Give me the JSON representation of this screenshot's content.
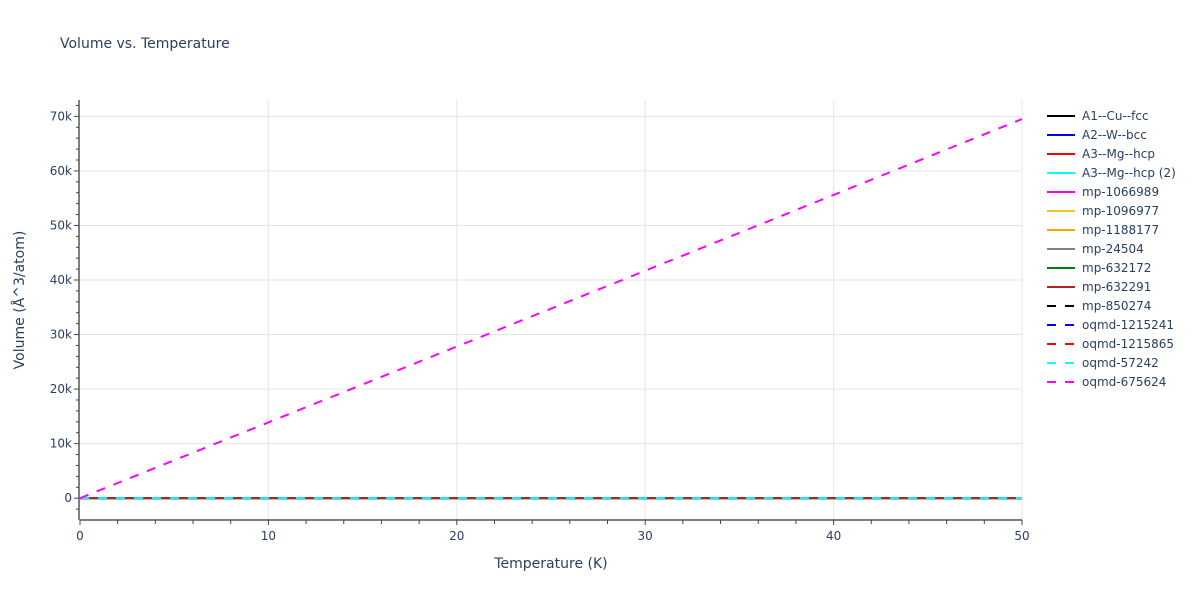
{
  "chart_data": {
    "type": "line",
    "title": "Volume vs. Temperature",
    "xlabel": "Temperature (K)",
    "ylabel": "Volume (Å^3/atom)",
    "xlim": [
      0,
      50
    ],
    "ylim": [
      -4000,
      73000
    ],
    "x_ticks": [
      "0",
      "10",
      "20",
      "30",
      "40",
      "50"
    ],
    "y_ticks": [
      "0",
      "10k",
      "20k",
      "30k",
      "40k",
      "50k",
      "60k",
      "70k"
    ],
    "grid": true,
    "legend_position": "right",
    "series": [
      {
        "name": "A1--Cu--fcc",
        "color": "#000000",
        "dash": "solid",
        "x": [
          0,
          50
        ],
        "y": [
          0,
          0
        ]
      },
      {
        "name": "A2--W--bcc",
        "color": "#0000ff",
        "dash": "solid",
        "x": [
          0,
          50
        ],
        "y": [
          0,
          0
        ]
      },
      {
        "name": "A3--Mg--hcp",
        "color": "#ff0000",
        "dash": "solid",
        "x": [
          0,
          50
        ],
        "y": [
          0,
          0
        ]
      },
      {
        "name": "A3--Mg--hcp (2)",
        "color": "#00ffff",
        "dash": "solid",
        "x": [
          0,
          50
        ],
        "y": [
          0,
          0
        ]
      },
      {
        "name": "mp-1066989",
        "color": "#ff00ff",
        "dash": "solid",
        "x": [
          0,
          50
        ],
        "y": [
          0,
          0
        ]
      },
      {
        "name": "mp-1096977",
        "color": "#f5c518",
        "dash": "solid",
        "x": [
          0,
          50
        ],
        "y": [
          0,
          0
        ]
      },
      {
        "name": "mp-1188177",
        "color": "#ffa500",
        "dash": "solid",
        "x": [
          0,
          50
        ],
        "y": [
          0,
          0
        ]
      },
      {
        "name": "mp-24504",
        "color": "#808080",
        "dash": "solid",
        "x": [
          0,
          50
        ],
        "y": [
          0,
          0
        ]
      },
      {
        "name": "mp-632172",
        "color": "#008000",
        "dash": "solid",
        "x": [
          0,
          50
        ],
        "y": [
          0,
          0
        ]
      },
      {
        "name": "mp-632291",
        "color": "#b22222",
        "dash": "solid",
        "x": [
          0,
          50
        ],
        "y": [
          0,
          0
        ]
      },
      {
        "name": "mp-850274",
        "color": "#000000",
        "dash": "dash",
        "x": [
          0,
          50
        ],
        "y": [
          0,
          0
        ]
      },
      {
        "name": "oqmd-1215241",
        "color": "#0000ff",
        "dash": "dash",
        "x": [
          0,
          50
        ],
        "y": [
          0,
          0
        ]
      },
      {
        "name": "oqmd-1215865",
        "color": "#ff0000",
        "dash": "dash",
        "x": [
          0,
          50
        ],
        "y": [
          0,
          0
        ]
      },
      {
        "name": "oqmd-57242",
        "color": "#00ffff",
        "dash": "dash",
        "x": [
          0,
          50
        ],
        "y": [
          0,
          0
        ]
      },
      {
        "name": "oqmd-675624",
        "color": "#ff00ff",
        "dash": "dash",
        "x": [
          0,
          50
        ],
        "y": [
          0,
          69500
        ]
      }
    ]
  }
}
